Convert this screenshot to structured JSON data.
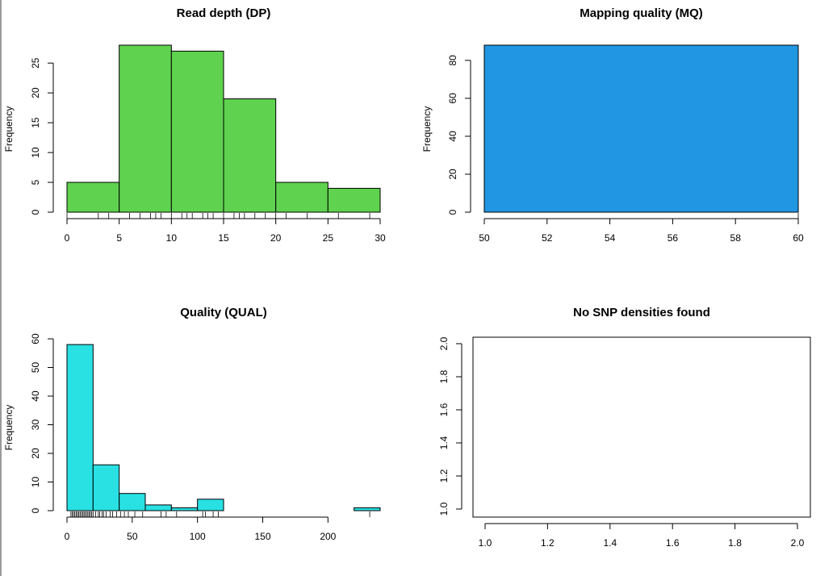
{
  "chart_data": [
    {
      "type": "bar",
      "title": "Read depth (DP)",
      "xlabel": "",
      "ylabel": "Frequency",
      "bin_edges": [
        0,
        5,
        10,
        15,
        20,
        25,
        30
      ],
      "values": [
        5,
        28,
        27,
        19,
        5,
        4
      ],
      "xlim": [
        0,
        30
      ],
      "ylim": [
        0,
        28
      ],
      "xticks": [
        0,
        5,
        10,
        15,
        20,
        25,
        30
      ],
      "yticks": [
        0,
        5,
        10,
        15,
        20,
        25
      ],
      "bar_color": "#5fd24f",
      "rug": [
        0,
        3,
        4,
        6,
        7,
        8,
        8.5,
        9,
        10,
        11,
        11.5,
        12,
        13,
        13.5,
        14,
        15,
        16,
        16.5,
        17,
        18,
        19,
        20,
        21,
        23,
        26,
        29
      ],
      "grid": false,
      "legend": "none"
    },
    {
      "type": "bar",
      "title": "Mapping quality (MQ)",
      "xlabel": "",
      "ylabel": "Frequency",
      "bin_edges": [
        50,
        60
      ],
      "values": [
        88
      ],
      "xlim": [
        50,
        60
      ],
      "ylim": [
        0,
        88
      ],
      "xticks": [
        50,
        52,
        54,
        56,
        58,
        60
      ],
      "yticks": [
        0,
        20,
        40,
        60,
        80
      ],
      "bar_color": "#2196e3",
      "rug": [
        60
      ],
      "grid": false,
      "legend": "none"
    },
    {
      "type": "bar",
      "title": "Quality (QUAL)",
      "xlabel": "",
      "ylabel": "Frequency",
      "bin_edges": [
        0,
        20,
        40,
        60,
        80,
        100,
        120,
        140,
        160,
        180,
        200,
        220,
        240
      ],
      "values": [
        58,
        16,
        6,
        2,
        1,
        4,
        0,
        0,
        0,
        0,
        0,
        1
      ],
      "xlim": [
        0,
        240
      ],
      "ylim": [
        0,
        60
      ],
      "xticks": [
        0,
        50,
        100,
        150,
        200
      ],
      "yticks": [
        0,
        10,
        20,
        30,
        40,
        50,
        60
      ],
      "bar_color": "#29e0e3",
      "rug": [
        3,
        4,
        5,
        6,
        7,
        8,
        9,
        10,
        11,
        12,
        13,
        14,
        15,
        16,
        17,
        18,
        19,
        20,
        22,
        24,
        25,
        27,
        28,
        30,
        33,
        35,
        38,
        41,
        44,
        47,
        52,
        58,
        72,
        76,
        84,
        104,
        106,
        112,
        116,
        232
      ],
      "grid": false,
      "legend": "none"
    },
    {
      "type": "scatter",
      "title": "No SNP densities found",
      "xlabel": "",
      "ylabel": "",
      "points": [],
      "xlim": [
        1.0,
        2.0
      ],
      "ylim": [
        1.0,
        2.0
      ],
      "xticks": [
        "1.0",
        "1.2",
        "1.4",
        "1.6",
        "1.8",
        "2.0"
      ],
      "yticks": [
        "1.0",
        "1.2",
        "1.4",
        "1.6",
        "1.8",
        "2.0"
      ],
      "grid": false,
      "legend": "none"
    }
  ]
}
